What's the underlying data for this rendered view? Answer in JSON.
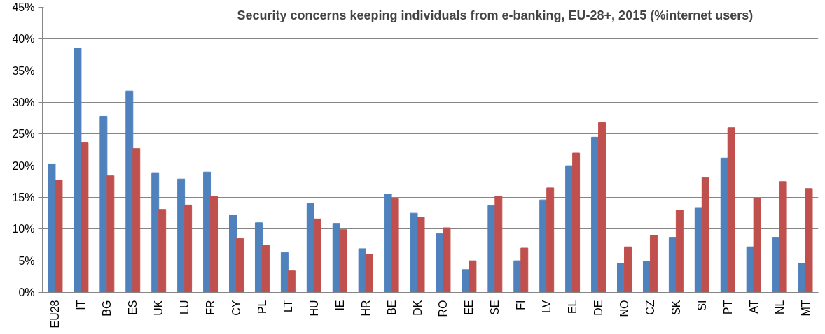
{
  "chart_data": {
    "type": "bar",
    "title": "Security concerns keeping individuals from e-banking, EU-28+, 2015 (%internet users)",
    "categories": [
      "EU28",
      "IT",
      "BG",
      "ES",
      "UK",
      "LU",
      "FR",
      "CY",
      "PL",
      "LT",
      "HU",
      "IE",
      "HR",
      "BE",
      "DK",
      "RO",
      "EE",
      "SE",
      "FI",
      "LV",
      "EL",
      "DE",
      "NO",
      "CZ",
      "SK",
      "SI",
      "PT",
      "AT",
      "NL",
      "MT"
    ],
    "series": [
      {
        "color": "#4f81bd",
        "values": [
          20.3,
          38.6,
          27.8,
          31.8,
          18.9,
          17.9,
          19.0,
          12.2,
          11.0,
          6.3,
          14.0,
          10.9,
          6.9,
          15.5,
          12.5,
          9.3,
          3.6,
          13.7,
          5.0,
          14.6,
          20.0,
          24.5,
          4.6,
          4.9,
          8.7,
          13.4,
          21.2,
          7.2,
          8.7,
          4.6
        ]
      },
      {
        "color": "#c0504d",
        "values": [
          17.7,
          23.7,
          18.4,
          22.7,
          13.1,
          13.8,
          15.2,
          8.5,
          7.5,
          3.4,
          11.6,
          9.9,
          6.0,
          14.8,
          11.9,
          10.2,
          5.0,
          15.2,
          7.0,
          16.5,
          22.0,
          26.8,
          7.2,
          9.0,
          13.0,
          18.1,
          26.0,
          14.9,
          17.5,
          16.4
        ]
      }
    ],
    "ylim": [
      0,
      45
    ],
    "yticks": [
      {
        "value": 0,
        "label": "0%"
      },
      {
        "value": 5,
        "label": "5%"
      },
      {
        "value": 10,
        "label": "10%"
      },
      {
        "value": 15,
        "label": "15%"
      },
      {
        "value": 20,
        "label": "20%"
      },
      {
        "value": 25,
        "label": "25%"
      },
      {
        "value": 30,
        "label": "30%"
      },
      {
        "value": 35,
        "label": "35%"
      },
      {
        "value": 40,
        "label": "40%"
      },
      {
        "value": 45,
        "label": "45%"
      }
    ],
    "grid": "y"
  }
}
